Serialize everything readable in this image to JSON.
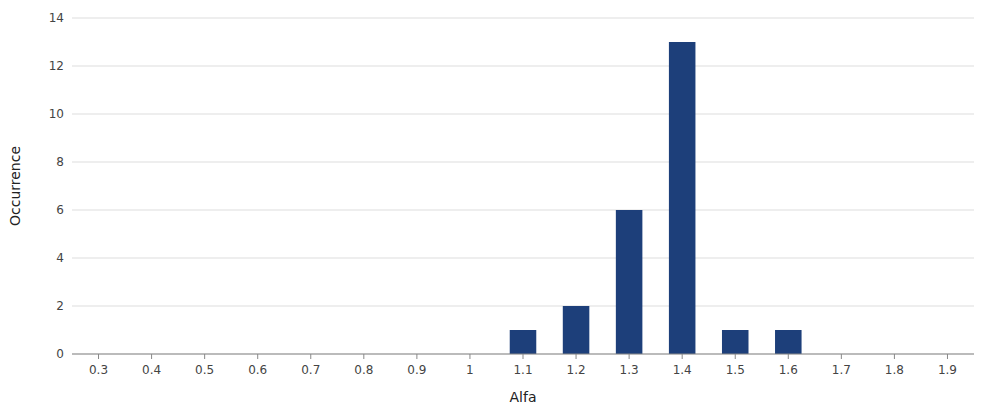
{
  "chart_data": {
    "type": "bar",
    "x": [
      1.1,
      1.2,
      1.3,
      1.4,
      1.5,
      1.6
    ],
    "values": [
      1,
      2,
      6,
      13,
      1,
      1
    ],
    "color": "#1D3F7A",
    "xlabel": "Alfa",
    "ylabel": "Occurrence",
    "xlim": [
      0.25,
      1.95
    ],
    "xticks": [
      0.3,
      0.4,
      0.5,
      0.6,
      0.7,
      0.8,
      0.9,
      1,
      1.1,
      1.2,
      1.3,
      1.4,
      1.5,
      1.6,
      1.7,
      1.8,
      1.9
    ],
    "ylim": [
      0,
      14
    ],
    "yticks": [
      0,
      2,
      4,
      6,
      8,
      10,
      12,
      14
    ],
    "grid": true
  }
}
